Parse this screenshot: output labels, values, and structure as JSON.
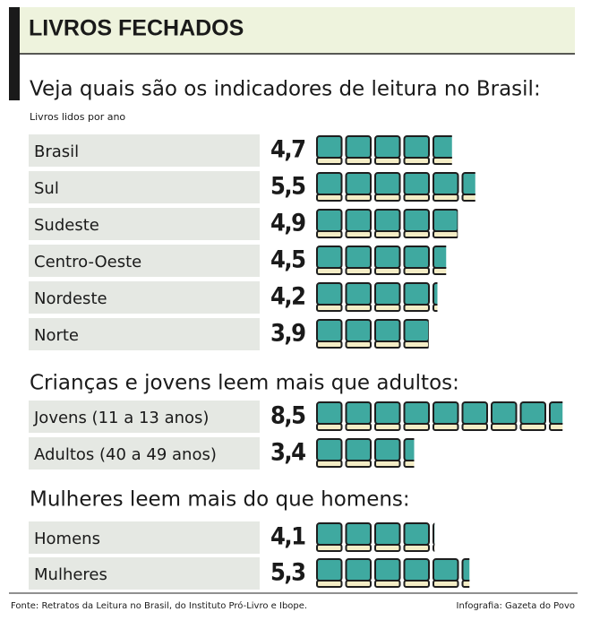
{
  "header": {
    "title": "LIVROS FECHADOS"
  },
  "chart_data": [
    {
      "type": "pictogram",
      "title": "Veja quais são os indicadores de leitura no Brasil:",
      "subtitle": "Livros lidos por ano",
      "categories": [
        "Brasil",
        "Sul",
        "Sudeste",
        "Centro-Oeste",
        "Nordeste",
        "Norte"
      ],
      "values": [
        4.7,
        5.5,
        4.9,
        4.5,
        4.2,
        3.9
      ],
      "value_labels": [
        "4,7",
        "5,5",
        "4,9",
        "4,5",
        "4,2",
        "3,9"
      ],
      "color": "#3fa9a0"
    },
    {
      "type": "pictogram",
      "title": "Crianças e jovens leem mais que adultos:",
      "categories": [
        "Jovens (11 a 13 anos)",
        "Adultos (40 a 49 anos)"
      ],
      "values": [
        8.5,
        3.4
      ],
      "value_labels": [
        "8,5",
        "3,4"
      ],
      "color": "#3fa9a0"
    },
    {
      "type": "pictogram",
      "title": "Mulheres leem mais do que homens:",
      "categories": [
        "Homens",
        "Mulheres"
      ],
      "values": [
        4.1,
        5.3
      ],
      "value_labels": [
        "4,1",
        "5,3"
      ],
      "color": "#3fa9a0"
    }
  ],
  "footer": {
    "source": "Fonte: Retratos da Leitura no Brasil, do Instituto Pró-Livro e Ibope.",
    "credit": "Infografia: Gazeta do Povo"
  }
}
